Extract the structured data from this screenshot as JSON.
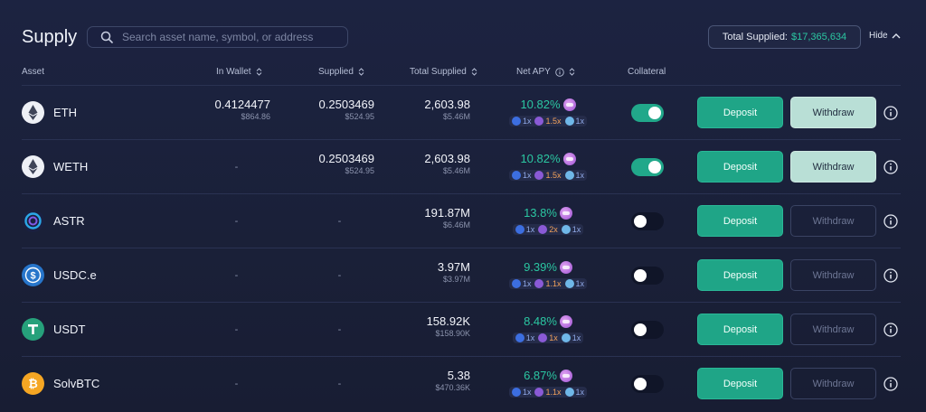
{
  "header": {
    "title": "Supply",
    "search_placeholder": "Search asset name, symbol, or address",
    "total_supplied_label": "Total Supplied:",
    "total_supplied_value": "$17,365,634",
    "hide_label": "Hide"
  },
  "columns": {
    "asset": "Asset",
    "in_wallet": "In Wallet",
    "supplied": "Supplied",
    "total_supplied": "Total Supplied",
    "net_apy": "Net APY",
    "collateral": "Collateral"
  },
  "buttons": {
    "deposit": "Deposit",
    "withdraw": "Withdraw"
  },
  "colors": {
    "accent_green": "#2bc7a2",
    "deposit_bg": "#1fa587",
    "withdraw_active_bg": "#b9dfd6"
  },
  "rows": [
    {
      "name": "ETH",
      "icon": "eth-icon",
      "wallet": "0.4124477",
      "wallet_usd": "$864.86",
      "supplied": "0.2503469",
      "supplied_usd": "$524.95",
      "total": "2,603.98",
      "total_usd": "$5.46M",
      "apy": "10.82%",
      "m1": "1x",
      "m2": "1.5x",
      "m3": "1x",
      "collateral": true,
      "withdraw_enabled": true
    },
    {
      "name": "WETH",
      "icon": "weth-icon",
      "wallet": "-",
      "wallet_usd": "",
      "supplied": "0.2503469",
      "supplied_usd": "$524.95",
      "total": "2,603.98",
      "total_usd": "$5.46M",
      "apy": "10.82%",
      "m1": "1x",
      "m2": "1.5x",
      "m3": "1x",
      "collateral": true,
      "withdraw_enabled": true
    },
    {
      "name": "ASTR",
      "icon": "astr-icon",
      "wallet": "-",
      "wallet_usd": "",
      "supplied": "-",
      "supplied_usd": "",
      "total": "191.87M",
      "total_usd": "$6.46M",
      "apy": "13.8%",
      "m1": "1x",
      "m2": "2x",
      "m3": "1x",
      "collateral": false,
      "withdraw_enabled": false
    },
    {
      "name": "USDC.e",
      "icon": "usdc-icon",
      "wallet": "-",
      "wallet_usd": "",
      "supplied": "-",
      "supplied_usd": "",
      "total": "3.97M",
      "total_usd": "$3.97M",
      "apy": "9.39%",
      "m1": "1x",
      "m2": "1.1x",
      "m3": "1x",
      "collateral": false,
      "withdraw_enabled": false
    },
    {
      "name": "USDT",
      "icon": "usdt-icon",
      "wallet": "-",
      "wallet_usd": "",
      "supplied": "-",
      "supplied_usd": "",
      "total": "158.92K",
      "total_usd": "$158.90K",
      "apy": "8.48%",
      "m1": "1x",
      "m2": "1x",
      "m3": "1x",
      "collateral": false,
      "withdraw_enabled": false
    },
    {
      "name": "SolvBTC",
      "icon": "solvbtc-icon",
      "wallet": "-",
      "wallet_usd": "",
      "supplied": "-",
      "supplied_usd": "",
      "total": "5.38",
      "total_usd": "$470.36K",
      "apy": "6.87%",
      "m1": "1x",
      "m2": "1.1x",
      "m3": "1x",
      "collateral": false,
      "withdraw_enabled": false
    }
  ]
}
